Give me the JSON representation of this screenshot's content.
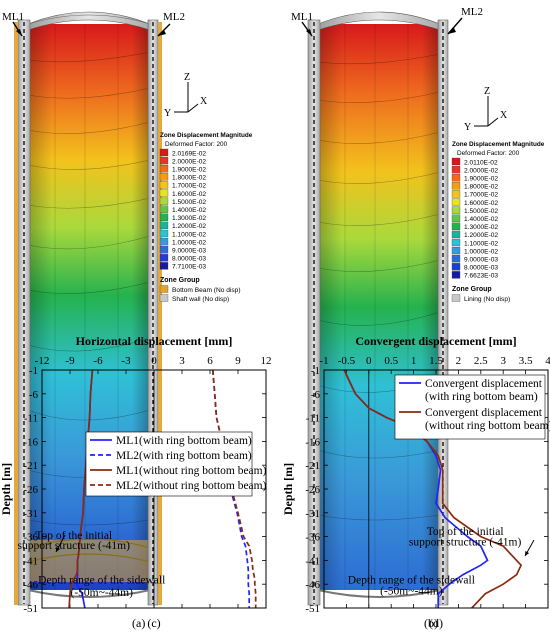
{
  "panel_a": {
    "caption": "(a)",
    "ml1": "ML1",
    "ml2": "ML2",
    "axes": {
      "z": "Z",
      "y": "Y",
      "x": "X"
    },
    "legend_title": "Zone Displacement Magnitude",
    "deformed": "Deformed Factor: 200",
    "levels": [
      "2.0169E-02",
      "2.0000E-02",
      "1.9000E-02",
      "1.8000E-02",
      "1.7000E-02",
      "1.6000E-02",
      "1.5000E-02",
      "1.4000E-02",
      "1.3000E-02",
      "1.2000E-02",
      "1.1000E-02",
      "1.0000E-02",
      "9.0000E-03",
      "8.0000E-03",
      "7.7100E-03"
    ],
    "colors": [
      "#d7191c",
      "#e3362a",
      "#ee6a1e",
      "#f39b1b",
      "#f3c21d",
      "#e6e41c",
      "#a9d93c",
      "#5cc84a",
      "#25b24e",
      "#1fb0a0",
      "#2fc0d6",
      "#3a9ad8",
      "#2d6cd3",
      "#1e3fc8",
      "#1a1aa0"
    ],
    "group_title": "Zone Group",
    "groups": [
      {
        "label": "Bottom Beam (No disp)",
        "color": "#e0a52c"
      },
      {
        "label": "Shaft wall (No disp)",
        "color": "#c8c8c8"
      }
    ]
  },
  "panel_b": {
    "caption": "(b)",
    "ml1": "ML1",
    "ml2": "ML2",
    "axes": {
      "z": "Z",
      "y": "Y",
      "x": "X"
    },
    "legend_title": "Zone Displacement Magnitude",
    "deformed": "Deformed Factor: 200",
    "levels": [
      "2.0110E-02",
      "2.0000E-02",
      "1.9000E-02",
      "1.8000E-02",
      "1.7000E-02",
      "1.6000E-02",
      "1.5000E-02",
      "1.4000E-02",
      "1.3000E-02",
      "1.2000E-02",
      "1.1000E-02",
      "1.0000E-02",
      "9.0000E-03",
      "8.0000E-03",
      "7.6623E-03"
    ],
    "colors": [
      "#d7191c",
      "#e3362a",
      "#ee6a1e",
      "#f39b1b",
      "#f3c21d",
      "#e6e41c",
      "#a9d93c",
      "#5cc84a",
      "#25b24e",
      "#1fb0a0",
      "#2fc0d6",
      "#3a9ad8",
      "#2d6cd3",
      "#1e3fc8",
      "#1a1aa0"
    ],
    "group_title": "Zone Group",
    "groups": [
      {
        "label": "Lining (No disp)",
        "color": "#c8c8c8"
      }
    ]
  },
  "chart_data": [
    {
      "type": "line",
      "caption": "(c)",
      "xlabel": "Horizontal displacement [mm]",
      "ylabel": "Depth [m]",
      "xlim": [
        -12,
        12
      ],
      "ylim": [
        -51,
        -1
      ],
      "xticks": [
        -12,
        -9,
        -6,
        -3,
        0,
        3,
        6,
        9,
        12
      ],
      "yticks": [
        -1,
        -6,
        -11,
        -16,
        -21,
        -26,
        -31,
        -36,
        -41,
        -46,
        -51
      ],
      "legend_position": "center-right",
      "series": [
        {
          "name": "ML1(with ring bottom beam)",
          "color": "#1f24ff",
          "dash": "",
          "x": [
            -6.6,
            -6.8,
            -6.9,
            -7.1,
            -7.3,
            -7.5,
            -7.6,
            -7.8,
            -7.9,
            -8.0,
            -8.1,
            -8.2,
            -8.2,
            -8.2,
            -8.2,
            -8.3,
            -7.7,
            -7.4
          ],
          "y": [
            -1,
            -6,
            -11,
            -16,
            -21,
            -26,
            -31,
            -34,
            -36,
            -38,
            -40,
            -41,
            -43,
            -44,
            -45,
            -46,
            -48,
            -51
          ]
        },
        {
          "name": "ML2(with ring bottom beam)",
          "color": "#1f24ff",
          "dash": "5,3",
          "x": [
            6.3,
            6.5,
            6.7,
            7.3,
            7.7,
            8.2,
            8.9,
            9.4,
            9.8,
            10.0,
            10.1,
            10.1,
            10.1,
            10.1,
            10.2,
            10.2
          ],
          "y": [
            -1,
            -6,
            -11,
            -16,
            -21,
            -26,
            -31,
            -36,
            -38,
            -41,
            -43,
            -44,
            -45,
            -46,
            -48,
            -51
          ]
        },
        {
          "name": "ML1(without ring bottom beam)",
          "color": "#8b2a10",
          "dash": "",
          "x": [
            -6.6,
            -6.8,
            -6.9,
            -7.1,
            -7.3,
            -7.5,
            -7.6,
            -7.8,
            -7.9,
            -8.0,
            -8.1,
            -8.2,
            -8.2,
            -8.3,
            -8.6,
            -8.9,
            -9.0,
            -9.1
          ],
          "y": [
            -1,
            -6,
            -11,
            -16,
            -21,
            -26,
            -31,
            -34,
            -36,
            -38,
            -40,
            -41,
            -43,
            -44,
            -45,
            -46,
            -48,
            -51
          ]
        },
        {
          "name": "ML2(without ring bottom beam)",
          "color": "#8b2a10",
          "dash": "5,3",
          "x": [
            6.3,
            6.5,
            6.7,
            7.3,
            7.7,
            8.3,
            9.0,
            9.6,
            10.2,
            10.5,
            10.6,
            10.7,
            10.8,
            10.8,
            10.9,
            10.9
          ],
          "y": [
            -1,
            -6,
            -11,
            -16,
            -21,
            -26,
            -31,
            -36,
            -38,
            -41,
            -43,
            -44,
            -45,
            -46,
            -48,
            -51
          ]
        }
      ],
      "annotations": [
        {
          "text": "Top of the initial",
          "x": -8.6,
          "y": -36.5
        },
        {
          "text": "support structure (-41m)",
          "x": -8.6,
          "y": -38.6
        },
        {
          "text": "Depth range of the sidewall",
          "x": -5.6,
          "y": -45.9
        },
        {
          "text": "(-50m~-44m)",
          "x": -5.6,
          "y": -48.5
        }
      ]
    },
    {
      "type": "line",
      "caption": "(d)",
      "xlabel": "Convergent displacement [mm]",
      "ylabel": "Depth [m]",
      "xlim": [
        -1,
        4
      ],
      "ylim": [
        -51,
        -1
      ],
      "xticks": [
        -1,
        -0.5,
        0,
        0.5,
        1,
        1.5,
        2,
        2.5,
        3,
        3.5,
        4
      ],
      "yticks": [
        -1,
        -6,
        -11,
        -16,
        -21,
        -26,
        -31,
        -36,
        -41,
        -46,
        -51
      ],
      "legend_position": "top-right",
      "series": [
        {
          "name": "Convergent displacement (with ring bottom beam)",
          "color": "#1f24ff",
          "dash": "",
          "x": [
            -0.55,
            -0.45,
            -0.3,
            0.0,
            0.4,
            0.9,
            1.3,
            1.5,
            1.6,
            1.55,
            1.5,
            1.7,
            2.2,
            2.5,
            2.65,
            2.5,
            2.1,
            1.8,
            1.55,
            1.55
          ],
          "y": [
            -1,
            -3,
            -6,
            -9,
            -11,
            -13,
            -16,
            -19,
            -22,
            -26,
            -29,
            -32,
            -36,
            -38,
            -41,
            -42,
            -44,
            -46,
            -48,
            -51
          ]
        },
        {
          "name": "Convergent displacement (without ring bottom beam)",
          "color": "#8b2a10",
          "dash": "",
          "x": [
            -0.55,
            -0.45,
            -0.3,
            0.0,
            0.4,
            0.9,
            1.3,
            1.55,
            1.65,
            1.65,
            1.65,
            1.9,
            2.5,
            3.0,
            3.3,
            3.4,
            3.3,
            3.0,
            2.6,
            2.3
          ],
          "y": [
            -1,
            -3,
            -6,
            -9,
            -11,
            -13,
            -16,
            -19,
            -22,
            -26,
            -29,
            -32,
            -36,
            -38,
            -41,
            -42,
            -44,
            -46,
            -48,
            -51
          ]
        }
      ],
      "annotations": [
        {
          "text": "Top of the initial",
          "x": 2.15,
          "y": -35.7
        },
        {
          "text": "support structure (-41m)",
          "x": 2.15,
          "y": -37.9
        },
        {
          "text": "Depth range of the sidewall",
          "x": 0.95,
          "y": -45.9
        },
        {
          "text": "(-50m~-44m)",
          "x": 0.95,
          "y": -48.2
        }
      ]
    }
  ]
}
